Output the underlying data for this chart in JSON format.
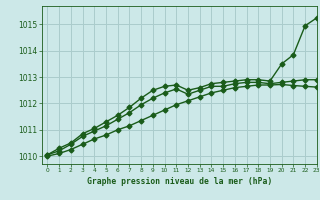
{
  "title": "Graphe pression niveau de la mer (hPa)",
  "bg_color": "#cce8e8",
  "grid_color": "#aacccc",
  "line_color": "#1a5c1a",
  "xlim": [
    -0.5,
    23
  ],
  "ylim": [
    1009.7,
    1015.7
  ],
  "xticks": [
    0,
    1,
    2,
    3,
    4,
    5,
    6,
    7,
    8,
    9,
    10,
    11,
    12,
    13,
    14,
    15,
    16,
    17,
    18,
    19,
    20,
    21,
    22,
    23
  ],
  "yticks": [
    1010,
    1011,
    1012,
    1013,
    1014,
    1015
  ],
  "series": [
    {
      "x": [
        0,
        1,
        2,
        3,
        4,
        5,
        6,
        7,
        8,
        9,
        10,
        11,
        12,
        13,
        14,
        15,
        16,
        17,
        18,
        19,
        20,
        21,
        22,
        23
      ],
      "y": [
        1010.05,
        1010.3,
        1010.5,
        1010.85,
        1011.05,
        1011.3,
        1011.55,
        1011.85,
        1012.2,
        1012.5,
        1012.65,
        1012.7,
        1012.5,
        1012.6,
        1012.75,
        1012.8,
        1012.85,
        1012.9,
        1012.9,
        1012.85,
        1013.5,
        1013.85,
        1014.95,
        1015.25
      ],
      "marker": "D",
      "markersize": 2.5,
      "linewidth": 1.0
    },
    {
      "x": [
        0,
        1,
        2,
        3,
        4,
        5,
        6,
        7,
        8,
        9,
        10,
        11,
        12,
        13,
        14,
        15,
        16,
        17,
        18,
        19,
        20,
        21,
        22,
        23
      ],
      "y": [
        1010.05,
        1010.2,
        1010.45,
        1010.75,
        1010.95,
        1011.15,
        1011.4,
        1011.65,
        1011.95,
        1012.2,
        1012.4,
        1012.55,
        1012.35,
        1012.5,
        1012.65,
        1012.65,
        1012.75,
        1012.8,
        1012.8,
        1012.75,
        1012.8,
        1012.85,
        1012.9,
        1012.9
      ],
      "marker": "D",
      "markersize": 2.5,
      "linewidth": 1.0
    },
    {
      "x": [
        0,
        1,
        2,
        3,
        4,
        5,
        6,
        7,
        8,
        9,
        10,
        11,
        12,
        13,
        14,
        15,
        16,
        17,
        18,
        19,
        20,
        21,
        22,
        23
      ],
      "y": [
        1010.0,
        1010.1,
        1010.25,
        1010.45,
        1010.65,
        1010.8,
        1011.0,
        1011.15,
        1011.35,
        1011.55,
        1011.75,
        1011.95,
        1012.1,
        1012.25,
        1012.4,
        1012.5,
        1012.6,
        1012.65,
        1012.7,
        1012.7,
        1012.72,
        1012.68,
        1012.65,
        1012.62
      ],
      "marker": "D",
      "markersize": 2.5,
      "linewidth": 1.0
    }
  ]
}
